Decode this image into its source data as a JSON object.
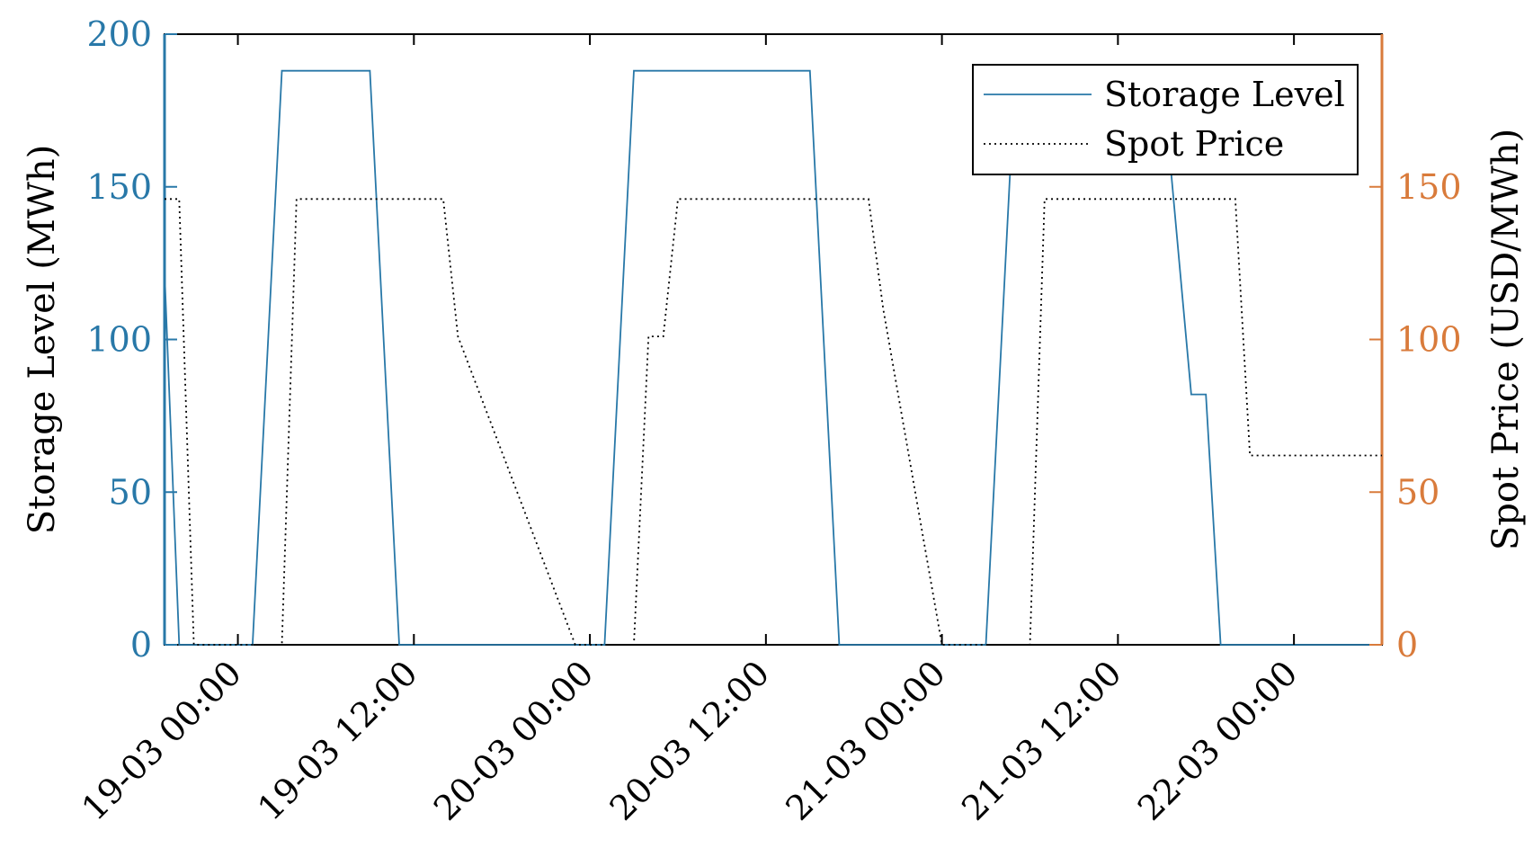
{
  "chart_data": {
    "type": "line",
    "xlabel": "",
    "ylabel_left": "Storage Level (MWh)",
    "ylabel_right": "Spot Price (USD/MWh)",
    "x_range": [
      "2019-03-18T19:00",
      "2019-03-22T06:00"
    ],
    "x_ticks": [
      {
        "t": "2019-03-19T00:00",
        "label": "19-03 00:00"
      },
      {
        "t": "2019-03-19T12:00",
        "label": "19-03 12:00"
      },
      {
        "t": "2019-03-20T00:00",
        "label": "20-03 00:00"
      },
      {
        "t": "2019-03-20T12:00",
        "label": "20-03 12:00"
      },
      {
        "t": "2019-03-21T00:00",
        "label": "21-03 00:00"
      },
      {
        "t": "2019-03-21T12:00",
        "label": "21-03 12:00"
      },
      {
        "t": "2019-03-22T00:00",
        "label": "22-03 00:00"
      }
    ],
    "y_left": {
      "range": [
        0,
        200
      ],
      "ticks": [
        0,
        50,
        100,
        150,
        200
      ],
      "color": "#2878a8"
    },
    "y_right": {
      "range": [
        0,
        200
      ],
      "ticks": [
        0,
        50,
        100,
        150
      ],
      "color": "#d97b3b"
    },
    "legend": {
      "position": "top-right",
      "entries": [
        "Storage Level",
        "Spot Price"
      ]
    },
    "grid": false,
    "series": [
      {
        "name": "Storage Level",
        "axis": "left",
        "style": "solid",
        "color": "#2878a8",
        "points": [
          [
            "2019-03-18T19:00",
            122
          ],
          [
            "2019-03-18T20:00",
            0
          ],
          [
            "2019-03-19T01:00",
            0
          ],
          [
            "2019-03-19T03:00",
            188
          ],
          [
            "2019-03-19T09:00",
            188
          ],
          [
            "2019-03-19T11:00",
            0
          ],
          [
            "2019-03-20T01:00",
            0
          ],
          [
            "2019-03-20T03:00",
            188
          ],
          [
            "2019-03-20T15:00",
            188
          ],
          [
            "2019-03-20T17:00",
            0
          ],
          [
            "2019-03-21T03:00",
            0
          ],
          [
            "2019-03-21T05:00",
            188
          ],
          [
            "2019-03-21T15:00",
            188
          ],
          [
            "2019-03-21T17:00",
            82
          ],
          [
            "2019-03-21T18:00",
            82
          ],
          [
            "2019-03-21T19:00",
            0
          ],
          [
            "2019-03-22T06:00",
            0
          ]
        ]
      },
      {
        "name": "Spot Price",
        "axis": "right",
        "style": "dotted",
        "color": "#000000",
        "points": [
          [
            "2019-03-18T19:00",
            146
          ],
          [
            "2019-03-18T20:00",
            146
          ],
          [
            "2019-03-18T21:00",
            0
          ],
          [
            "2019-03-19T03:00",
            0
          ],
          [
            "2019-03-19T04:00",
            146
          ],
          [
            "2019-03-19T14:00",
            146
          ],
          [
            "2019-03-19T15:00",
            101
          ],
          [
            "2019-03-19T23:00",
            0
          ],
          [
            "2019-03-20T03:00",
            0
          ],
          [
            "2019-03-20T04:00",
            101
          ],
          [
            "2019-03-20T05:00",
            101
          ],
          [
            "2019-03-20T06:00",
            146
          ],
          [
            "2019-03-20T19:00",
            146
          ],
          [
            "2019-03-20T20:00",
            110
          ],
          [
            "2019-03-21T00:00",
            0
          ],
          [
            "2019-03-21T06:00",
            0
          ],
          [
            "2019-03-21T07:00",
            146
          ],
          [
            "2019-03-21T20:00",
            146
          ],
          [
            "2019-03-21T21:00",
            62
          ],
          [
            "2019-03-22T06:00",
            62
          ]
        ]
      }
    ]
  }
}
